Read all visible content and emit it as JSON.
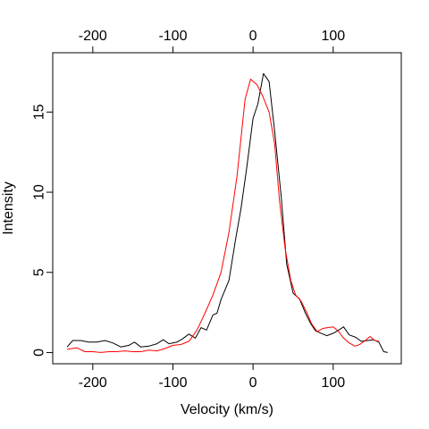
{
  "chart_data": {
    "type": "line",
    "title": "",
    "xlabel": "Velocity (km/s)",
    "ylabel": "Intensity",
    "xlim": [
      -250,
      185
    ],
    "ylim": [
      -0.7,
      18.7
    ],
    "x_ticks": [
      -200,
      -100,
      0,
      100
    ],
    "x_tick_labels": [
      "-200",
      "-100",
      "0",
      "100"
    ],
    "top_x_ticks": [
      -200,
      -100,
      0,
      100
    ],
    "top_x_tick_labels": [
      "-200",
      "-100",
      "0",
      "100"
    ],
    "y_ticks": [
      0,
      5,
      10,
      15
    ],
    "y_tick_labels": [
      "0",
      "5",
      "10",
      "15"
    ],
    "grid": false,
    "legend": null,
    "series": [
      {
        "color": "#000000",
        "points": [
          [
            -232,
            0.35
          ],
          [
            -225,
            0.75
          ],
          [
            -215,
            0.75
          ],
          [
            -205,
            0.65
          ],
          [
            -195,
            0.65
          ],
          [
            -185,
            0.75
          ],
          [
            -175,
            0.6
          ],
          [
            -165,
            0.35
          ],
          [
            -155,
            0.45
          ],
          [
            -148,
            0.65
          ],
          [
            -140,
            0.35
          ],
          [
            -130,
            0.4
          ],
          [
            -120,
            0.55
          ],
          [
            -112,
            0.8
          ],
          [
            -105,
            0.55
          ],
          [
            -95,
            0.65
          ],
          [
            -88,
            0.85
          ],
          [
            -80,
            1.15
          ],
          [
            -72,
            0.9
          ],
          [
            -65,
            1.55
          ],
          [
            -58,
            1.4
          ],
          [
            -50,
            2.35
          ],
          [
            -45,
            2.45
          ],
          [
            -40,
            3.3
          ],
          [
            -30,
            4.5
          ],
          [
            -22,
            7.0
          ],
          [
            -15,
            9.0
          ],
          [
            -8,
            11.5
          ],
          [
            0,
            14.6
          ],
          [
            6,
            15.5
          ],
          [
            13,
            17.4
          ],
          [
            20,
            16.9
          ],
          [
            27,
            13.8
          ],
          [
            35,
            9.8
          ],
          [
            42,
            5.5
          ],
          [
            50,
            3.7
          ],
          [
            58,
            3.35
          ],
          [
            65,
            2.5
          ],
          [
            72,
            1.8
          ],
          [
            78,
            1.35
          ],
          [
            85,
            1.2
          ],
          [
            92,
            1.05
          ],
          [
            100,
            1.2
          ],
          [
            107,
            1.4
          ],
          [
            113,
            1.6
          ],
          [
            120,
            1.1
          ],
          [
            128,
            0.95
          ],
          [
            135,
            0.7
          ],
          [
            143,
            0.75
          ],
          [
            150,
            0.8
          ],
          [
            157,
            0.65
          ],
          [
            163,
            0.05
          ],
          [
            168,
            0.0
          ]
        ]
      },
      {
        "color": "#ff0000",
        "points": [
          [
            -232,
            0.2
          ],
          [
            -220,
            0.3
          ],
          [
            -210,
            0.05
          ],
          [
            -200,
            0.05
          ],
          [
            -190,
            0.0
          ],
          [
            -180,
            0.05
          ],
          [
            -170,
            0.05
          ],
          [
            -160,
            0.1
          ],
          [
            -150,
            0.05
          ],
          [
            -140,
            0.05
          ],
          [
            -130,
            0.15
          ],
          [
            -120,
            0.1
          ],
          [
            -110,
            0.25
          ],
          [
            -100,
            0.45
          ],
          [
            -90,
            0.5
          ],
          [
            -80,
            0.7
          ],
          [
            -70,
            1.4
          ],
          [
            -60,
            2.45
          ],
          [
            -50,
            3.6
          ],
          [
            -40,
            5.0
          ],
          [
            -30,
            7.5
          ],
          [
            -20,
            11.0
          ],
          [
            -10,
            15.8
          ],
          [
            -3,
            17.05
          ],
          [
            5,
            16.7
          ],
          [
            12,
            16.0
          ],
          [
            20,
            15.0
          ],
          [
            27,
            13.0
          ],
          [
            33,
            9.5
          ],
          [
            40,
            6.5
          ],
          [
            47,
            4.5
          ],
          [
            53,
            3.6
          ],
          [
            60,
            3.2
          ],
          [
            67,
            2.5
          ],
          [
            73,
            1.8
          ],
          [
            80,
            1.3
          ],
          [
            87,
            1.5
          ],
          [
            93,
            1.55
          ],
          [
            100,
            1.6
          ],
          [
            107,
            1.3
          ],
          [
            113,
            0.9
          ],
          [
            120,
            0.6
          ],
          [
            127,
            0.4
          ],
          [
            133,
            0.5
          ],
          [
            140,
            0.75
          ],
          [
            146,
            1.0
          ],
          [
            152,
            0.75
          ],
          [
            157,
            0.7
          ]
        ]
      }
    ]
  }
}
